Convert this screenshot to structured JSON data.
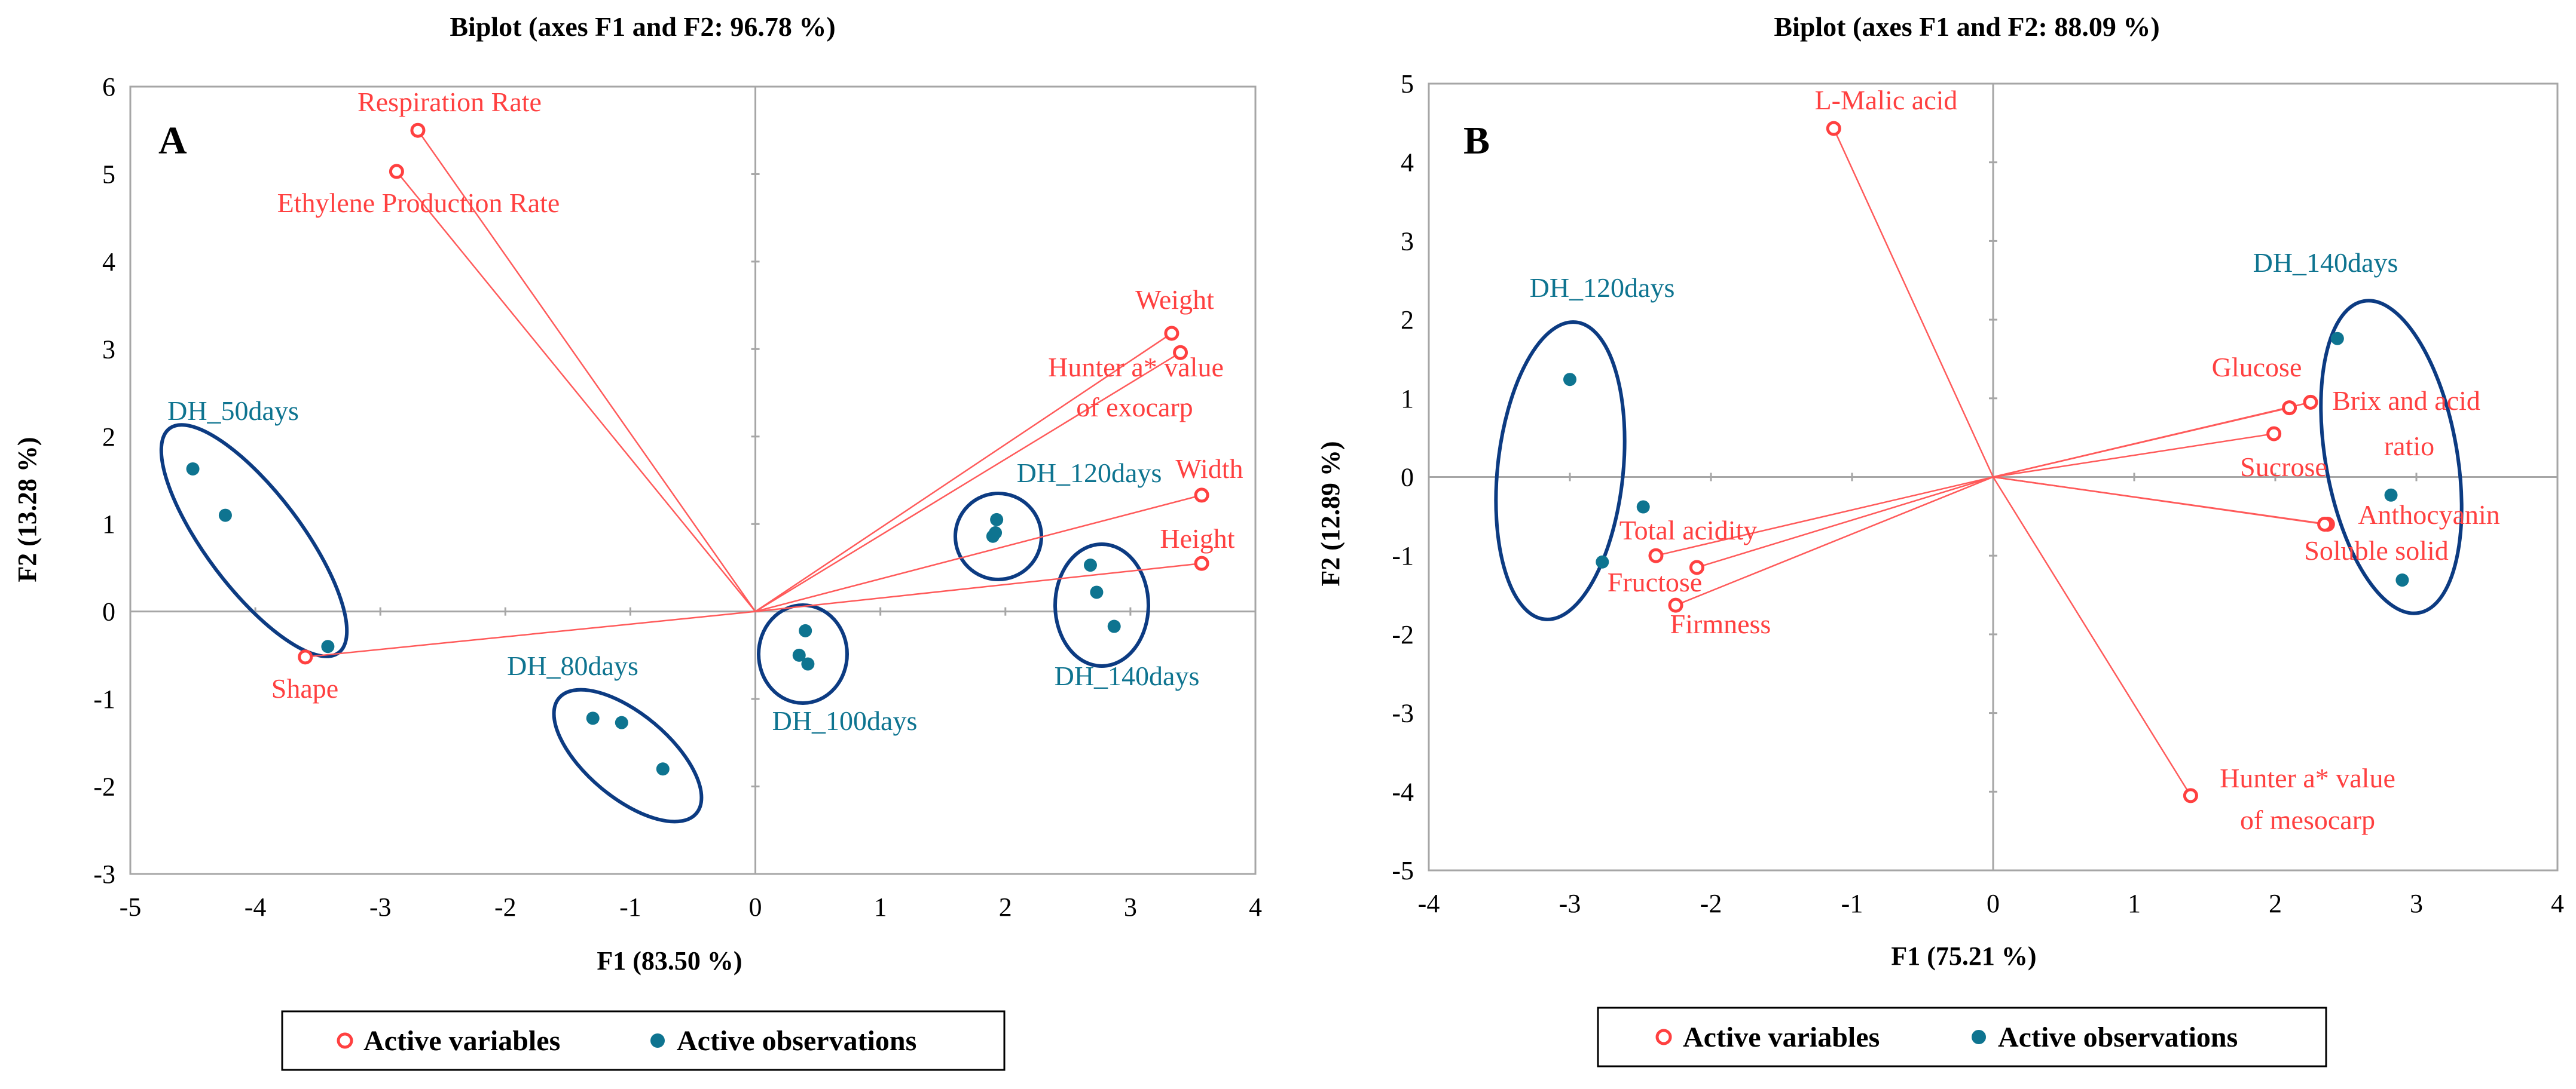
{
  "chart_data": [
    {
      "type": "scatter",
      "subtype": "biplot",
      "panel_label": "A",
      "title": "Biplot (axes F1 and F2: 96.78 %)",
      "xlabel": "F1 (83.50 %)",
      "ylabel": "F2 (13.28 %)",
      "xlim": [
        -5,
        4
      ],
      "ylim": [
        -3,
        6
      ],
      "xticks": [
        "-5",
        "-4",
        "-3",
        "-2",
        "-1",
        "0",
        "1",
        "2",
        "3",
        "4"
      ],
      "yticks": [
        "-3",
        "-2",
        "-1",
        "0",
        "1",
        "2",
        "3",
        "4",
        "5",
        "6"
      ],
      "variables": [
        {
          "label": "Respiration Rate",
          "x": -2.7,
          "y": 5.5
        },
        {
          "label": "Ethylene Production Rate",
          "x": -2.87,
          "y": 5.03
        },
        {
          "label": "Weight",
          "x": 3.33,
          "y": 3.18
        },
        {
          "label": "Hunter a* value",
          "label2": "of exocarp",
          "x": 3.4,
          "y": 2.96
        },
        {
          "label": "Width",
          "x": 3.57,
          "y": 1.33
        },
        {
          "label": "Height",
          "x": 3.57,
          "y": 0.55
        },
        {
          "label": "Shape",
          "x": -3.6,
          "y": -0.52
        }
      ],
      "observations": [
        {
          "x": -4.5,
          "y": 1.63
        },
        {
          "x": -4.24,
          "y": 1.1
        },
        {
          "x": -3.42,
          "y": -0.4
        },
        {
          "x": -1.3,
          "y": -1.22
        },
        {
          "x": -1.07,
          "y": -1.27
        },
        {
          "x": -0.74,
          "y": -1.8
        },
        {
          "x": 0.35,
          "y": -0.5
        },
        {
          "x": 0.4,
          "y": -0.22
        },
        {
          "x": 0.42,
          "y": -0.6
        },
        {
          "x": 1.9,
          "y": 0.86
        },
        {
          "x": 1.92,
          "y": 0.9
        },
        {
          "x": 1.93,
          "y": 1.05
        },
        {
          "x": 2.68,
          "y": 0.53
        },
        {
          "x": 2.73,
          "y": 0.22
        },
        {
          "x": 2.87,
          "y": -0.17
        }
      ],
      "groups": [
        "DH_50days",
        "DH_80days",
        "DH_100days",
        "DH_120days",
        "DH_140days"
      ],
      "legend": [
        "Active variables",
        "Active observations"
      ]
    },
    {
      "type": "scatter",
      "subtype": "biplot",
      "panel_label": "B",
      "title": "Biplot (axes F1 and F2: 88.09 %)",
      "xlabel": "F1 (75.21 %)",
      "ylabel": "F2 (12.89 %)",
      "xlim": [
        -4,
        4
      ],
      "ylim": [
        -5,
        5
      ],
      "xticks": [
        "-4",
        "-3",
        "-2",
        "-1",
        "0",
        "1",
        "2",
        "3",
        "4"
      ],
      "yticks": [
        "-5",
        "-4",
        "-3",
        "-2",
        "-1",
        "0",
        "1",
        "2",
        "3",
        "4",
        "5"
      ],
      "variables": [
        {
          "label": "L-Malic acid",
          "x": -1.13,
          "y": 4.43
        },
        {
          "label": "Glucose",
          "x": 2.1,
          "y": 0.88
        },
        {
          "label": "Brix and acid",
          "label2": "ratio",
          "x": 2.25,
          "y": 0.95
        },
        {
          "label": "Sucrose",
          "x": 1.99,
          "y": 0.55
        },
        {
          "label": "Anthocyanin",
          "x": 2.37,
          "y": -0.6
        },
        {
          "label": "Soluble solid",
          "x": 2.35,
          "y": -0.6
        },
        {
          "label": "Hunter a* value",
          "label2": "of mesocarp",
          "x": 1.4,
          "y": -4.05
        },
        {
          "label": "Total acidity",
          "x": -2.39,
          "y": -1.0
        },
        {
          "label": "Fructose",
          "x": -2.1,
          "y": -1.15
        },
        {
          "label": "Firmness",
          "x": -2.25,
          "y": -1.63
        }
      ],
      "observations": [
        {
          "x": -3.0,
          "y": 1.24
        },
        {
          "x": -2.48,
          "y": -0.38
        },
        {
          "x": -2.77,
          "y": -1.08
        },
        {
          "x": 2.44,
          "y": 1.76
        },
        {
          "x": 2.82,
          "y": -0.23
        },
        {
          "x": 2.9,
          "y": -1.31
        }
      ],
      "groups": [
        "DH_120days",
        "DH_140days"
      ],
      "legend": [
        "Active variables",
        "Active observations"
      ]
    }
  ]
}
